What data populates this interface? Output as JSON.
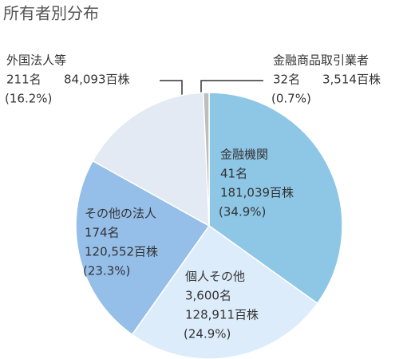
{
  "chart_data": {
    "type": "pie",
    "title": "所有者別分布",
    "categories": [
      "金融機関",
      "個人その他",
      "その他の法人",
      "外国法人等",
      "金融商品取引業者"
    ],
    "holders_labels": [
      "41名",
      "3,600名",
      "174名",
      "211名",
      "32名"
    ],
    "shares_labels": [
      "181,039百株",
      "128,911百株",
      "120,552百株",
      "84,093百株",
      "3,514百株"
    ],
    "values": [
      34.9,
      24.9,
      23.3,
      16.2,
      0.7
    ],
    "value_labels": [
      "(34.9%)",
      "(24.9%)",
      "(23.3%)",
      "(16.2%)",
      "(0.7%)"
    ],
    "colors": [
      "#8ec6e6",
      "#ddecfb",
      "#95bee9",
      "#e3eaf3",
      "#bdbdbd"
    ]
  }
}
